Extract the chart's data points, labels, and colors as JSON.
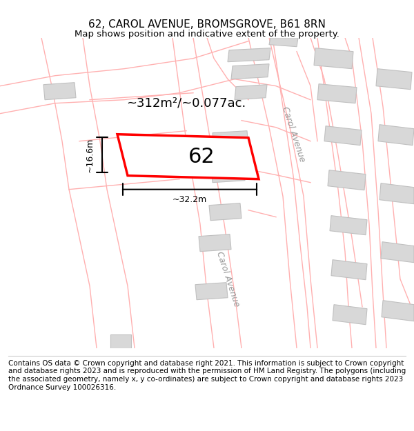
{
  "title": "62, CAROL AVENUE, BROMSGROVE, B61 8RN",
  "subtitle": "Map shows position and indicative extent of the property.",
  "footer": "Contains OS data © Crown copyright and database right 2021. This information is subject to Crown copyright and database rights 2023 and is reproduced with the permission of HM Land Registry. The polygons (including the associated geometry, namely x, y co-ordinates) are subject to Crown copyright and database rights 2023 Ordnance Survey 100026316.",
  "area_label": "~312m²/~0.077ac.",
  "width_label": "~32.2m",
  "height_label": "~16.6m",
  "plot_number": "62",
  "bg_color": "#ffffff",
  "map_bg": "#f9f9f9",
  "plot_color": "#ff0000",
  "road_label_1": "Carol Avenue",
  "road_label_2": "Carol Avenue",
  "boundary_color": "#ffb0b0",
  "building_color": "#d8d8d8",
  "building_outline": "#cccccc",
  "title_fontsize": 11,
  "subtitle_fontsize": 9.5,
  "footer_fontsize": 7.5
}
